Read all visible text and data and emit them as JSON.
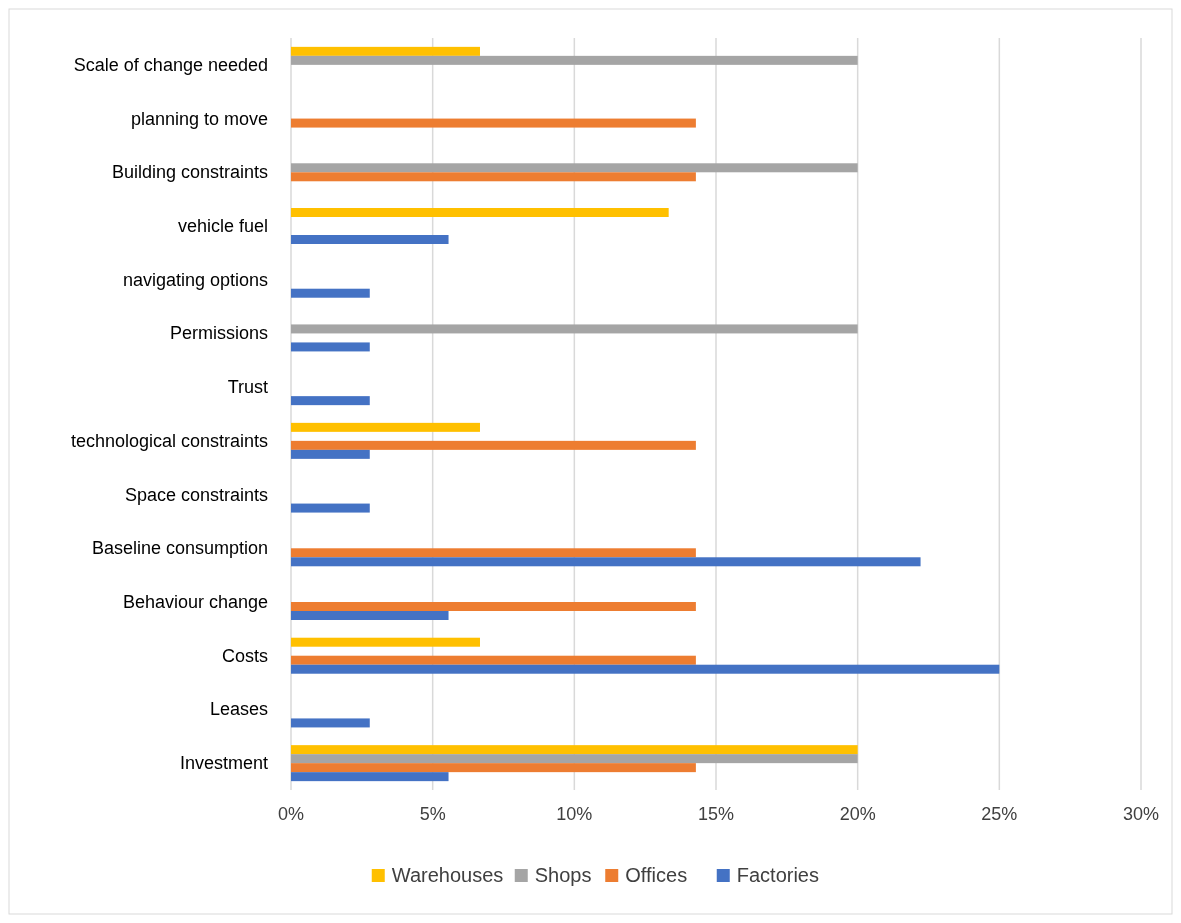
{
  "chart_data": {
    "type": "bar",
    "orientation": "horizontal",
    "categories": [
      "Scale of change needed",
      "planning to move",
      "Building constraints",
      "vehicle fuel",
      "navigating options",
      "Permissions",
      "Trust",
      "technological constraints",
      "Space constraints",
      "Baseline consumption",
      "Behaviour change",
      "Costs",
      "Leases",
      "Investment"
    ],
    "series": [
      {
        "name": "Warehouses",
        "color": "#ffc000",
        "values": [
          6.67,
          null,
          null,
          13.33,
          null,
          null,
          null,
          6.67,
          null,
          null,
          null,
          6.67,
          null,
          20
        ]
      },
      {
        "name": "Shops",
        "color": "#a5a5a5",
        "values": [
          20,
          null,
          20,
          null,
          null,
          20,
          null,
          null,
          null,
          null,
          null,
          null,
          null,
          20
        ]
      },
      {
        "name": "Offices",
        "color": "#ed7d31",
        "values": [
          null,
          14.29,
          14.29,
          null,
          null,
          null,
          null,
          14.29,
          null,
          14.29,
          14.29,
          14.29,
          null,
          14.29
        ]
      },
      {
        "name": "Factories",
        "color": "#4472c4",
        "values": [
          null,
          null,
          null,
          5.56,
          2.78,
          2.78,
          2.78,
          2.78,
          2.78,
          22.22,
          5.56,
          25,
          2.78,
          5.56
        ]
      }
    ],
    "xlim": [
      0,
      30
    ],
    "xticks": [
      {
        "value": 0,
        "label": "0%"
      },
      {
        "value": 5,
        "label": "5%"
      },
      {
        "value": 10,
        "label": "10%"
      },
      {
        "value": 15,
        "label": "15%"
      },
      {
        "value": 20,
        "label": "20%"
      },
      {
        "value": 25,
        "label": "25%"
      },
      {
        "value": 30,
        "label": "30%"
      }
    ],
    "grid": "x",
    "legend": "bottom"
  }
}
